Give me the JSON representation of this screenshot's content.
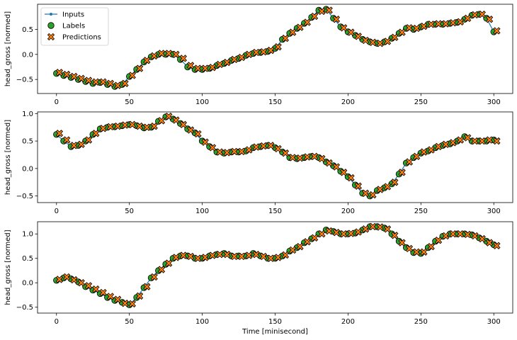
{
  "chart_data": [
    {
      "type": "scatter",
      "ylabel": "head_gross [normed]",
      "xlabel": "",
      "xlim": [
        -13,
        313
      ],
      "ylim": [
        -0.78,
        1.0
      ],
      "xticks": [
        0,
        50,
        100,
        150,
        200,
        250,
        300
      ],
      "yticks": [
        -0.5,
        0.0,
        0.5
      ],
      "ytick_labels": [
        "−0.5",
        "0.0",
        "0.5"
      ],
      "legend": {
        "placement": "top-left",
        "entries": [
          {
            "key": "inputs",
            "label": "Inputs"
          },
          {
            "key": "labels",
            "label": "Labels"
          },
          {
            "key": "predictions",
            "label": "Predictions"
          }
        ]
      },
      "series": [
        {
          "key": "labels",
          "name": "Labels",
          "color": "#2ca02c",
          "x": [
            0,
            5,
            10,
            15,
            20,
            25,
            30,
            35,
            40,
            45,
            50,
            55,
            60,
            65,
            70,
            75,
            80,
            85,
            90,
            95,
            100,
            105,
            110,
            115,
            120,
            125,
            130,
            135,
            140,
            145,
            150,
            155,
            160,
            165,
            170,
            175,
            180,
            185,
            190,
            195,
            200,
            205,
            210,
            215,
            220,
            225,
            230,
            235,
            240,
            245,
            250,
            255,
            260,
            265,
            270,
            275,
            280,
            285,
            290,
            295,
            300
          ],
          "y": [
            -0.38,
            -0.42,
            -0.46,
            -0.5,
            -0.54,
            -0.58,
            -0.56,
            -0.6,
            -0.64,
            -0.6,
            -0.44,
            -0.3,
            -0.15,
            -0.05,
            0.0,
            0.0,
            0.0,
            -0.1,
            -0.25,
            -0.3,
            -0.3,
            -0.28,
            -0.22,
            -0.18,
            -0.12,
            -0.08,
            -0.02,
            0.02,
            0.04,
            0.06,
            0.12,
            0.3,
            0.42,
            0.52,
            0.62,
            0.74,
            0.88,
            0.9,
            0.72,
            0.55,
            0.45,
            0.38,
            0.3,
            0.25,
            0.22,
            0.25,
            0.32,
            0.42,
            0.52,
            0.5,
            0.55,
            0.6,
            0.6,
            0.6,
            0.62,
            0.64,
            0.7,
            0.78,
            0.8,
            0.72,
            0.45
          ]
        },
        {
          "key": "predictions",
          "name": "Predictions",
          "color": "#ff7f0e",
          "x": [
            0,
            5,
            10,
            15,
            20,
            25,
            30,
            35,
            40,
            45,
            50,
            55,
            60,
            65,
            70,
            75,
            80,
            85,
            90,
            95,
            100,
            105,
            110,
            115,
            120,
            125,
            130,
            135,
            140,
            145,
            150,
            155,
            160,
            165,
            170,
            175,
            180,
            185,
            190,
            195,
            200,
            205,
            210,
            215,
            220,
            225,
            230,
            235,
            240,
            245,
            250,
            255,
            260,
            265,
            270,
            275,
            280,
            285,
            290,
            295,
            300
          ],
          "y": [
            -0.36,
            -0.4,
            -0.44,
            -0.48,
            -0.52,
            -0.55,
            -0.55,
            -0.58,
            -0.62,
            -0.58,
            -0.42,
            -0.28,
            -0.12,
            -0.03,
            0.02,
            0.02,
            0.0,
            -0.08,
            -0.22,
            -0.28,
            -0.28,
            -0.26,
            -0.2,
            -0.16,
            -0.1,
            -0.06,
            0.0,
            0.04,
            0.05,
            0.08,
            0.15,
            0.32,
            0.44,
            0.54,
            0.64,
            0.76,
            0.86,
            0.88,
            0.7,
            0.53,
            0.44,
            0.36,
            0.28,
            0.24,
            0.22,
            0.26,
            0.34,
            0.44,
            0.53,
            0.52,
            0.56,
            0.6,
            0.61,
            0.61,
            0.63,
            0.65,
            0.72,
            0.79,
            0.8,
            0.7,
            0.47
          ]
        }
      ]
    },
    {
      "type": "scatter",
      "ylabel": "head_gross [normed]",
      "xlabel": "",
      "xlim": [
        -13,
        313
      ],
      "ylim": [
        -0.62,
        1.03
      ],
      "xticks": [
        0,
        50,
        100,
        150,
        200,
        250,
        300
      ],
      "yticks": [
        -0.5,
        0.0,
        0.5,
        1.0
      ],
      "ytick_labels": [
        "−0.5",
        "0.0",
        "0.5",
        "1.0"
      ],
      "series": [
        {
          "key": "labels",
          "name": "Labels",
          "color": "#2ca02c",
          "x": [
            0,
            5,
            10,
            15,
            20,
            25,
            30,
            35,
            40,
            45,
            50,
            55,
            60,
            65,
            70,
            75,
            80,
            85,
            90,
            95,
            100,
            105,
            110,
            115,
            120,
            125,
            130,
            135,
            140,
            145,
            150,
            155,
            160,
            165,
            170,
            175,
            180,
            185,
            190,
            195,
            200,
            205,
            210,
            215,
            220,
            225,
            230,
            235,
            240,
            245,
            250,
            255,
            260,
            265,
            270,
            275,
            280,
            285,
            290,
            295,
            300
          ],
          "y": [
            0.62,
            0.5,
            0.4,
            0.42,
            0.5,
            0.62,
            0.72,
            0.75,
            0.76,
            0.78,
            0.8,
            0.78,
            0.74,
            0.75,
            0.86,
            0.94,
            0.9,
            0.82,
            0.72,
            0.65,
            0.5,
            0.4,
            0.3,
            0.28,
            0.3,
            0.3,
            0.32,
            0.38,
            0.4,
            0.42,
            0.38,
            0.3,
            0.2,
            0.18,
            0.2,
            0.22,
            0.2,
            0.12,
            0.05,
            -0.05,
            -0.15,
            -0.3,
            -0.45,
            -0.5,
            -0.4,
            -0.35,
            -0.28,
            -0.1,
            0.1,
            0.2,
            0.28,
            0.32,
            0.38,
            0.42,
            0.45,
            0.5,
            0.58,
            0.5,
            0.5,
            0.5,
            0.52
          ]
        },
        {
          "key": "predictions",
          "name": "Predictions",
          "color": "#ff7f0e",
          "x": [
            0,
            5,
            10,
            15,
            20,
            25,
            30,
            35,
            40,
            45,
            50,
            55,
            60,
            65,
            70,
            75,
            80,
            85,
            90,
            95,
            100,
            105,
            110,
            115,
            120,
            125,
            130,
            135,
            140,
            145,
            150,
            155,
            160,
            165,
            170,
            175,
            180,
            185,
            190,
            195,
            200,
            205,
            210,
            215,
            220,
            225,
            230,
            235,
            240,
            245,
            250,
            255,
            260,
            265,
            270,
            275,
            280,
            285,
            290,
            295,
            300
          ],
          "y": [
            0.64,
            0.52,
            0.42,
            0.44,
            0.52,
            0.64,
            0.73,
            0.76,
            0.77,
            0.79,
            0.8,
            0.77,
            0.75,
            0.77,
            0.87,
            0.95,
            0.88,
            0.8,
            0.7,
            0.63,
            0.48,
            0.38,
            0.3,
            0.29,
            0.31,
            0.31,
            0.34,
            0.39,
            0.41,
            0.42,
            0.36,
            0.28,
            0.2,
            0.19,
            0.21,
            0.22,
            0.18,
            0.1,
            0.03,
            -0.07,
            -0.17,
            -0.32,
            -0.45,
            -0.48,
            -0.38,
            -0.33,
            -0.25,
            -0.07,
            0.12,
            0.22,
            0.3,
            0.34,
            0.4,
            0.44,
            0.47,
            0.52,
            0.56,
            0.5,
            0.5,
            0.52,
            0.5
          ]
        }
      ]
    },
    {
      "type": "scatter",
      "ylabel": "head_gross [normed]",
      "xlabel": "Time [minisecond]",
      "xlim": [
        -13,
        313
      ],
      "ylim": [
        -0.62,
        1.25
      ],
      "xticks": [
        0,
        50,
        100,
        150,
        200,
        250,
        300
      ],
      "yticks": [
        -0.5,
        0.0,
        0.5,
        1.0
      ],
      "ytick_labels": [
        "−0.5",
        "0.0",
        "0.5",
        "1.0"
      ],
      "series": [
        {
          "key": "labels",
          "name": "Labels",
          "color": "#2ca02c",
          "x": [
            0,
            5,
            10,
            15,
            20,
            25,
            30,
            35,
            40,
            45,
            50,
            55,
            60,
            65,
            70,
            75,
            80,
            85,
            90,
            95,
            100,
            105,
            110,
            115,
            120,
            125,
            130,
            135,
            140,
            145,
            150,
            155,
            160,
            165,
            170,
            175,
            180,
            185,
            190,
            195,
            200,
            205,
            210,
            215,
            220,
            225,
            230,
            235,
            240,
            245,
            250,
            255,
            260,
            265,
            270,
            275,
            280,
            285,
            290,
            295,
            300
          ],
          "y": [
            0.05,
            0.1,
            0.08,
            0.02,
            -0.08,
            -0.15,
            -0.22,
            -0.3,
            -0.36,
            -0.4,
            -0.45,
            -0.3,
            -0.1,
            0.1,
            0.25,
            0.38,
            0.5,
            0.55,
            0.55,
            0.5,
            0.5,
            0.55,
            0.58,
            0.6,
            0.55,
            0.55,
            0.55,
            0.6,
            0.55,
            0.5,
            0.5,
            0.55,
            0.65,
            0.72,
            0.82,
            0.9,
            1.0,
            1.08,
            1.05,
            1.0,
            1.0,
            1.02,
            1.08,
            1.15,
            1.15,
            1.12,
            1.0,
            0.85,
            0.72,
            0.62,
            0.6,
            0.72,
            0.85,
            0.95,
            1.0,
            1.0,
            1.0,
            0.98,
            0.92,
            0.85,
            0.78
          ]
        },
        {
          "key": "predictions",
          "name": "Predictions",
          "color": "#ff7f0e",
          "x": [
            0,
            5,
            10,
            15,
            20,
            25,
            30,
            35,
            40,
            45,
            50,
            55,
            60,
            65,
            70,
            75,
            80,
            85,
            90,
            95,
            100,
            105,
            110,
            115,
            120,
            125,
            130,
            135,
            140,
            145,
            150,
            155,
            160,
            165,
            170,
            175,
            180,
            185,
            190,
            195,
            200,
            205,
            210,
            215,
            220,
            225,
            230,
            235,
            240,
            245,
            250,
            255,
            260,
            265,
            270,
            275,
            280,
            285,
            290,
            295,
            300
          ],
          "y": [
            0.07,
            0.12,
            0.06,
            0.0,
            -0.06,
            -0.13,
            -0.2,
            -0.28,
            -0.34,
            -0.42,
            -0.43,
            -0.27,
            -0.08,
            0.12,
            0.27,
            0.4,
            0.52,
            0.56,
            0.54,
            0.5,
            0.52,
            0.56,
            0.58,
            0.58,
            0.54,
            0.54,
            0.56,
            0.58,
            0.54,
            0.5,
            0.52,
            0.57,
            0.67,
            0.74,
            0.84,
            0.92,
            1.0,
            1.06,
            1.03,
            1.0,
            1.01,
            1.04,
            1.1,
            1.15,
            1.14,
            1.1,
            0.97,
            0.82,
            0.7,
            0.63,
            0.63,
            0.74,
            0.87,
            0.96,
            1.0,
            1.0,
            0.99,
            0.96,
            0.9,
            0.82,
            0.76
          ]
        }
      ]
    }
  ]
}
